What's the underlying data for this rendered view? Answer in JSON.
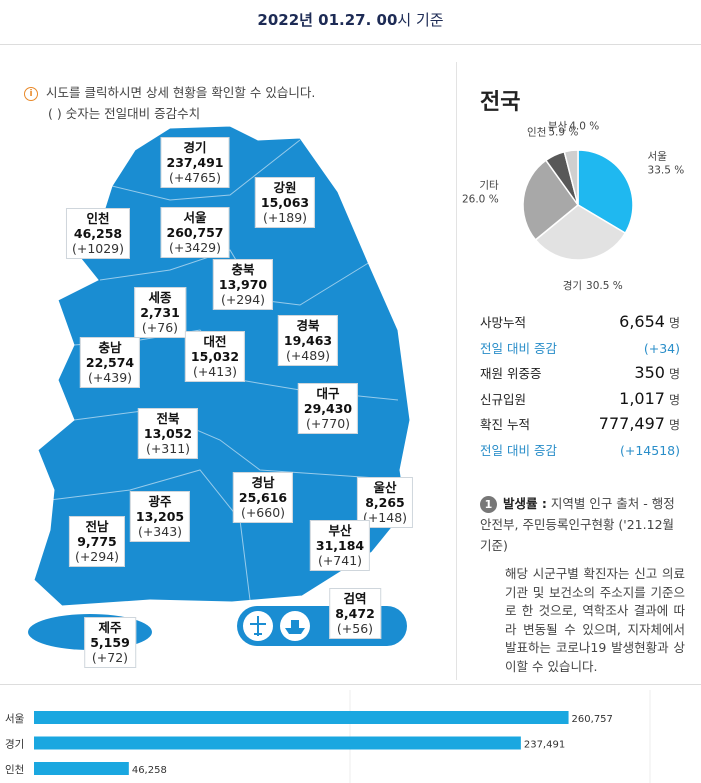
{
  "header": {
    "date": "2022년 01.27. 00",
    "suffix": "시 기준"
  },
  "map": {
    "notes": [
      "시도를 클릭하시면 상세 현황을 확인할 수 있습니다.",
      "( ) 숫자는 전일대비 증감수치"
    ],
    "regions": [
      {
        "name": "경기",
        "total": "237,491",
        "change": "(+4765)"
      },
      {
        "name": "강원",
        "total": "15,063",
        "change": "(+189)"
      },
      {
        "name": "인천",
        "total": "46,258",
        "change": "(+1029)"
      },
      {
        "name": "서울",
        "total": "260,757",
        "change": "(+3429)"
      },
      {
        "name": "충북",
        "total": "13,970",
        "change": "(+294)"
      },
      {
        "name": "세종",
        "total": "2,731",
        "change": "(+76)"
      },
      {
        "name": "충남",
        "total": "22,574",
        "change": "(+439)"
      },
      {
        "name": "대전",
        "total": "15,032",
        "change": "(+413)"
      },
      {
        "name": "경북",
        "total": "19,463",
        "change": "(+489)"
      },
      {
        "name": "대구",
        "total": "29,430",
        "change": "(+770)"
      },
      {
        "name": "전북",
        "total": "13,052",
        "change": "(+311)"
      },
      {
        "name": "경남",
        "total": "25,616",
        "change": "(+660)"
      },
      {
        "name": "울산",
        "total": "8,265",
        "change": "(+148)"
      },
      {
        "name": "광주",
        "total": "13,205",
        "change": "(+343)"
      },
      {
        "name": "전남",
        "total": "9,775",
        "change": "(+294)"
      },
      {
        "name": "부산",
        "total": "31,184",
        "change": "(+741)"
      },
      {
        "name": "검역",
        "total": "8,472",
        "change": "(+56)"
      },
      {
        "name": "제주",
        "total": "5,159",
        "change": "(+72)"
      }
    ]
  },
  "summary": {
    "title": "전국",
    "stats": [
      {
        "label": "사망누적",
        "value": "6,654",
        "unit": "명"
      },
      {
        "label": "전일 대비 증감",
        "value": "(+34)"
      },
      {
        "label": "재원 위중증",
        "value": "350",
        "unit": "명"
      },
      {
        "label": "신규입원",
        "value": "1,017",
        "unit": "명"
      },
      {
        "label": "확진 누적",
        "value": "777,497",
        "unit": "명"
      },
      {
        "label": "전일 대비 증감",
        "value": "(+14518)"
      }
    ],
    "footnote": {
      "number": "1",
      "term": "발생률 :",
      "text": "지역별 인구 출처 - 행정안전부, 주민등록인구현황 ('21.12월 기준)"
    },
    "note": "해당 시군구별 확진자는 신고 의료기관 및 보건소의 주소지를 기준으로 한 것으로, 역학조사 결과에 따라 변동될 수 있으며, 지자체에서 발표하는 코로나19 발생현황과 상이할 수 있습니다."
  },
  "chart_data": [
    {
      "type": "pie",
      "categories": [
        "서울",
        "경기",
        "기타",
        "인천",
        "부산"
      ],
      "values": [
        33.5,
        30.5,
        26.0,
        5.9,
        4.0
      ],
      "value_labels": [
        "33.5 %",
        "30.5 %",
        "26.0 %",
        "5.9 %",
        "4.0 %"
      ],
      "colors": [
        "#1fb8f0",
        "#e2e2e2",
        "#a8a8a8",
        "#585858",
        "#cfcfcf"
      ]
    },
    {
      "type": "bar",
      "orientation": "horizontal",
      "categories": [
        "서울",
        "경기",
        "인천"
      ],
      "values": [
        260757,
        237491,
        46258
      ],
      "value_labels": [
        "260,757",
        "237,491",
        "46,258"
      ],
      "color": "#1aa7e0",
      "xlim": [
        0,
        320000
      ]
    }
  ]
}
